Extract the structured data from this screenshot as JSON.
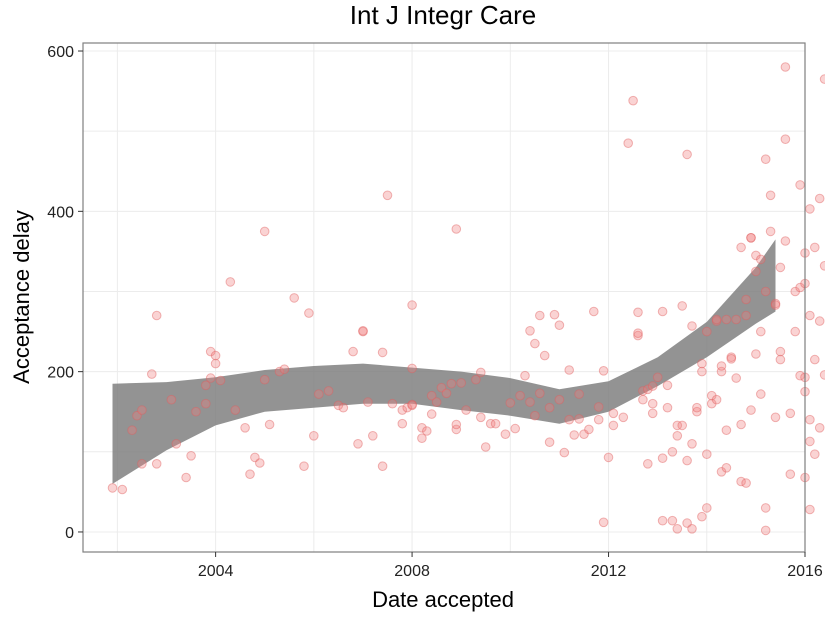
{
  "chart_data": {
    "type": "scatter",
    "title": "Int J Integr Care",
    "xlabel": "Date accepted",
    "ylabel": "Acceptance delay",
    "xlim": [
      2001.3,
      2016.0
    ],
    "ylim": [
      -25,
      610
    ],
    "x_ticks": [
      {
        "value": 2004,
        "label": "2004"
      },
      {
        "value": 2008,
        "label": "2008"
      },
      {
        "value": 2012,
        "label": "2012"
      },
      {
        "value": 2016,
        "label": "2016"
      }
    ],
    "y_ticks": [
      {
        "value": 0,
        "label": "0"
      },
      {
        "value": 200,
        "label": "200"
      },
      {
        "value": 400,
        "label": "400"
      },
      {
        "value": 600,
        "label": "600"
      }
    ],
    "grid": true,
    "point_color": "#f08080",
    "point_stroke": "#e06060",
    "band_color": "#808080",
    "points": [
      [
        2001.9,
        55
      ],
      [
        2002.1,
        53
      ],
      [
        2002.3,
        127
      ],
      [
        2002.4,
        145
      ],
      [
        2002.5,
        152
      ],
      [
        2002.5,
        85
      ],
      [
        2002.7,
        197
      ],
      [
        2002.8,
        85
      ],
      [
        2002.8,
        270
      ],
      [
        2003.1,
        165
      ],
      [
        2003.2,
        110
      ],
      [
        2003.4,
        68
      ],
      [
        2003.5,
        95
      ],
      [
        2003.6,
        150
      ],
      [
        2003.8,
        160
      ],
      [
        2003.8,
        183
      ],
      [
        2003.9,
        192
      ],
      [
        2003.9,
        225
      ],
      [
        2004.0,
        210
      ],
      [
        2004.0,
        220
      ],
      [
        2004.1,
        189
      ],
      [
        2004.3,
        312
      ],
      [
        2004.4,
        152
      ],
      [
        2004.6,
        130
      ],
      [
        2004.7,
        72
      ],
      [
        2004.8,
        93
      ],
      [
        2004.9,
        86
      ],
      [
        2005.0,
        190
      ],
      [
        2005.0,
        375
      ],
      [
        2005.1,
        134
      ],
      [
        2005.3,
        200
      ],
      [
        2005.4,
        203
      ],
      [
        2005.6,
        292
      ],
      [
        2005.8,
        82
      ],
      [
        2005.9,
        273
      ],
      [
        2006.0,
        120
      ],
      [
        2006.1,
        172
      ],
      [
        2006.3,
        176
      ],
      [
        2006.5,
        158
      ],
      [
        2006.6,
        155
      ],
      [
        2006.8,
        225
      ],
      [
        2006.9,
        110
      ],
      [
        2007.0,
        250
      ],
      [
        2007.0,
        251
      ],
      [
        2007.1,
        162
      ],
      [
        2007.2,
        120
      ],
      [
        2007.4,
        224
      ],
      [
        2007.4,
        82
      ],
      [
        2007.5,
        420
      ],
      [
        2007.6,
        160
      ],
      [
        2007.8,
        135
      ],
      [
        2007.8,
        152
      ],
      [
        2007.9,
        155
      ],
      [
        2008.0,
        159
      ],
      [
        2008.0,
        283
      ],
      [
        2008.0,
        204
      ],
      [
        2008.0,
        158
      ],
      [
        2008.2,
        130
      ],
      [
        2008.2,
        117
      ],
      [
        2008.3,
        126
      ],
      [
        2008.4,
        147
      ],
      [
        2008.4,
        170
      ],
      [
        2008.5,
        162
      ],
      [
        2008.6,
        180
      ],
      [
        2008.7,
        173
      ],
      [
        2008.8,
        185
      ],
      [
        2008.9,
        128
      ],
      [
        2008.9,
        378
      ],
      [
        2008.9,
        134
      ],
      [
        2009.0,
        186
      ],
      [
        2009.1,
        152
      ],
      [
        2009.3,
        190
      ],
      [
        2009.4,
        143
      ],
      [
        2009.4,
        199
      ],
      [
        2009.5,
        106
      ],
      [
        2009.6,
        135
      ],
      [
        2009.7,
        135
      ],
      [
        2009.9,
        122
      ],
      [
        2010.0,
        161
      ],
      [
        2010.1,
        129
      ],
      [
        2010.2,
        170
      ],
      [
        2010.3,
        195
      ],
      [
        2010.4,
        162
      ],
      [
        2010.4,
        251
      ],
      [
        2010.5,
        235
      ],
      [
        2010.5,
        145
      ],
      [
        2010.6,
        173
      ],
      [
        2010.6,
        270
      ],
      [
        2010.7,
        220
      ],
      [
        2010.8,
        112
      ],
      [
        2010.8,
        155
      ],
      [
        2010.9,
        271
      ],
      [
        2011.0,
        258
      ],
      [
        2011.0,
        165
      ],
      [
        2011.1,
        99
      ],
      [
        2011.2,
        140
      ],
      [
        2011.2,
        202
      ],
      [
        2011.3,
        121
      ],
      [
        2011.4,
        172
      ],
      [
        2011.4,
        141
      ],
      [
        2011.5,
        122
      ],
      [
        2011.6,
        128
      ],
      [
        2011.7,
        275
      ],
      [
        2011.8,
        140
      ],
      [
        2011.8,
        156
      ],
      [
        2011.9,
        12
      ],
      [
        2011.9,
        201
      ],
      [
        2012.0,
        93
      ],
      [
        2012.1,
        148
      ],
      [
        2012.1,
        133
      ],
      [
        2012.3,
        143
      ],
      [
        2012.4,
        485
      ],
      [
        2012.5,
        538
      ],
      [
        2012.6,
        274
      ],
      [
        2012.6,
        245
      ],
      [
        2012.6,
        248
      ],
      [
        2012.7,
        176
      ],
      [
        2012.7,
        165
      ],
      [
        2012.8,
        85
      ],
      [
        2012.8,
        178
      ],
      [
        2012.9,
        160
      ],
      [
        2012.9,
        182
      ],
      [
        2012.9,
        148
      ],
      [
        2013.0,
        193
      ],
      [
        2013.1,
        14
      ],
      [
        2013.1,
        92
      ],
      [
        2013.1,
        275
      ],
      [
        2013.2,
        183
      ],
      [
        2013.2,
        155
      ],
      [
        2013.3,
        14
      ],
      [
        2013.3,
        100
      ],
      [
        2013.4,
        4
      ],
      [
        2013.4,
        133
      ],
      [
        2013.4,
        120
      ],
      [
        2013.5,
        282
      ],
      [
        2013.5,
        133
      ],
      [
        2013.6,
        11
      ],
      [
        2013.6,
        89
      ],
      [
        2013.6,
        471
      ],
      [
        2013.7,
        257
      ],
      [
        2013.7,
        110
      ],
      [
        2013.7,
        4
      ],
      [
        2013.8,
        150
      ],
      [
        2013.8,
        155
      ],
      [
        2013.9,
        210
      ],
      [
        2013.9,
        200
      ],
      [
        2013.9,
        19
      ],
      [
        2014.0,
        30
      ],
      [
        2014.0,
        250
      ],
      [
        2014.0,
        97
      ],
      [
        2014.1,
        160
      ],
      [
        2014.1,
        170
      ],
      [
        2014.2,
        165
      ],
      [
        2014.2,
        263
      ],
      [
        2014.2,
        265
      ],
      [
        2014.3,
        75
      ],
      [
        2014.3,
        200
      ],
      [
        2014.3,
        207
      ],
      [
        2014.4,
        265
      ],
      [
        2014.4,
        127
      ],
      [
        2014.4,
        80
      ],
      [
        2014.5,
        218
      ],
      [
        2014.5,
        216
      ],
      [
        2014.6,
        265
      ],
      [
        2014.6,
        192
      ],
      [
        2014.7,
        134
      ],
      [
        2014.7,
        63
      ],
      [
        2014.7,
        355
      ],
      [
        2014.8,
        61
      ],
      [
        2014.8,
        270
      ],
      [
        2014.8,
        290
      ],
      [
        2014.9,
        367
      ],
      [
        2014.9,
        367
      ],
      [
        2014.9,
        152
      ],
      [
        2015.0,
        222
      ],
      [
        2015.0,
        345
      ],
      [
        2015.0,
        325
      ],
      [
        2015.1,
        340
      ],
      [
        2015.1,
        250
      ],
      [
        2015.1,
        172
      ],
      [
        2015.2,
        30
      ],
      [
        2015.2,
        2
      ],
      [
        2015.2,
        465
      ],
      [
        2015.2,
        300
      ],
      [
        2015.3,
        420
      ],
      [
        2015.3,
        375
      ],
      [
        2015.4,
        285
      ],
      [
        2015.4,
        283
      ],
      [
        2015.4,
        143
      ],
      [
        2015.5,
        225
      ],
      [
        2015.5,
        330
      ],
      [
        2015.5,
        215
      ],
      [
        2015.6,
        580
      ],
      [
        2015.6,
        490
      ],
      [
        2015.6,
        363
      ],
      [
        2015.7,
        148
      ],
      [
        2015.7,
        72
      ],
      [
        2015.8,
        300
      ],
      [
        2015.8,
        250
      ],
      [
        2015.9,
        433
      ],
      [
        2015.9,
        305
      ],
      [
        2015.9,
        195
      ],
      [
        2016.0,
        193
      ],
      [
        2016.0,
        68
      ],
      [
        2016.0,
        310
      ],
      [
        2016.0,
        348
      ],
      [
        2016.0,
        175
      ],
      [
        2016.1,
        28
      ],
      [
        2016.1,
        403
      ],
      [
        2016.1,
        140
      ],
      [
        2016.1,
        270
      ],
      [
        2016.1,
        113
      ],
      [
        2016.2,
        97
      ],
      [
        2016.2,
        355
      ],
      [
        2016.2,
        215
      ],
      [
        2016.3,
        263
      ],
      [
        2016.3,
        416
      ],
      [
        2016.3,
        130
      ],
      [
        2016.4,
        565
      ],
      [
        2016.4,
        196
      ],
      [
        2016.4,
        332
      ]
    ],
    "smooth_band": {
      "x": [
        2001.9,
        2003.0,
        2004.0,
        2005.0,
        2006.0,
        2007.0,
        2008.0,
        2009.0,
        2010.0,
        2011.0,
        2012.0,
        2013.0,
        2014.0,
        2015.0,
        2015.4
      ],
      "lower": [
        60,
        102,
        133,
        150,
        155,
        160,
        160,
        152,
        145,
        135,
        150,
        182,
        218,
        260,
        275
      ],
      "upper": [
        185,
        187,
        193,
        202,
        207,
        210,
        205,
        200,
        192,
        178,
        188,
        218,
        262,
        330,
        365
      ]
    }
  }
}
